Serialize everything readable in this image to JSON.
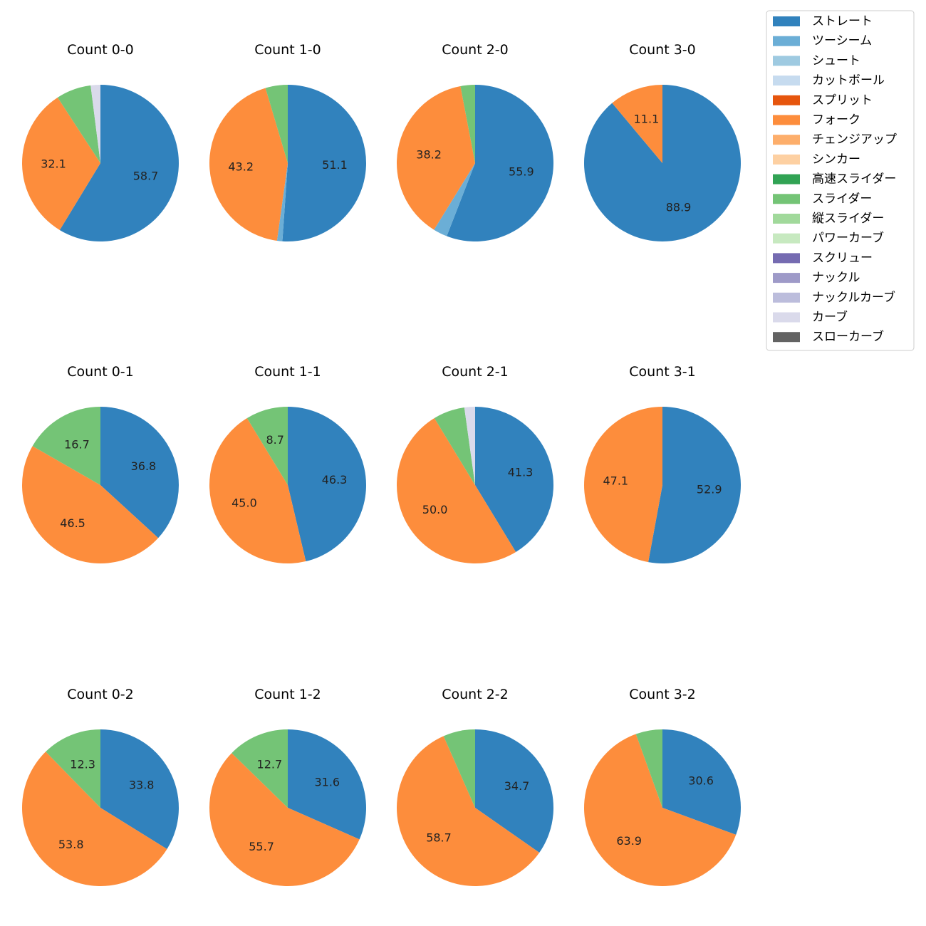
{
  "chart_data": {
    "type": "pie",
    "legend_position": "top-right",
    "categories": [
      "ストレート",
      "ツーシーム",
      "シュート",
      "カットボール",
      "スプリット",
      "フォーク",
      "チェンジアップ",
      "シンカー",
      "高速スライダー",
      "スライダー",
      "縦スライダー",
      "パワーカーブ",
      "スクリュー",
      "ナックル",
      "ナックルカーブ",
      "カーブ",
      "スローカーブ"
    ],
    "colors": [
      "#3182bd",
      "#6baed6",
      "#9ecae1",
      "#c6dbef",
      "#e6550d",
      "#fd8d3c",
      "#fdae6b",
      "#fdd0a2",
      "#31a354",
      "#74c476",
      "#a1d99b",
      "#c7e9c0",
      "#756bb1",
      "#9e9ac8",
      "#bcbddc",
      "#dadaeb",
      "#636363"
    ],
    "charts": [
      {
        "title": "Count 0-0",
        "slices": [
          {
            "category": "ストレート",
            "value": 58.7,
            "label": "58.7"
          },
          {
            "category": "フォーク",
            "value": 32.1,
            "label": "32.1"
          },
          {
            "category": "スライダー",
            "value": 7.2,
            "label": ""
          },
          {
            "category": "カーブ",
            "value": 2.0,
            "label": ""
          }
        ]
      },
      {
        "title": "Count 1-0",
        "slices": [
          {
            "category": "ストレート",
            "value": 51.1,
            "label": "51.1"
          },
          {
            "category": "ツーシーム",
            "value": 1.1,
            "label": ""
          },
          {
            "category": "フォーク",
            "value": 43.2,
            "label": "43.2"
          },
          {
            "category": "スライダー",
            "value": 4.6,
            "label": ""
          }
        ]
      },
      {
        "title": "Count 2-0",
        "slices": [
          {
            "category": "ストレート",
            "value": 55.9,
            "label": "55.9"
          },
          {
            "category": "ツーシーム",
            "value": 2.9,
            "label": ""
          },
          {
            "category": "フォーク",
            "value": 38.2,
            "label": "38.2"
          },
          {
            "category": "スライダー",
            "value": 3.0,
            "label": ""
          }
        ]
      },
      {
        "title": "Count 3-0",
        "slices": [
          {
            "category": "ストレート",
            "value": 88.9,
            "label": "88.9"
          },
          {
            "category": "フォーク",
            "value": 11.1,
            "label": "11.1"
          }
        ]
      },
      {
        "title": "Count 0-1",
        "slices": [
          {
            "category": "ストレート",
            "value": 36.8,
            "label": "36.8"
          },
          {
            "category": "フォーク",
            "value": 46.5,
            "label": "46.5"
          },
          {
            "category": "スライダー",
            "value": 16.7,
            "label": "16.7"
          }
        ]
      },
      {
        "title": "Count 1-1",
        "slices": [
          {
            "category": "ストレート",
            "value": 46.3,
            "label": "46.3"
          },
          {
            "category": "フォーク",
            "value": 45.0,
            "label": "45.0"
          },
          {
            "category": "スライダー",
            "value": 8.7,
            "label": "8.7"
          }
        ]
      },
      {
        "title": "Count 2-1",
        "slices": [
          {
            "category": "ストレート",
            "value": 41.3,
            "label": "41.3"
          },
          {
            "category": "フォーク",
            "value": 50.0,
            "label": "50.0"
          },
          {
            "category": "スライダー",
            "value": 6.5,
            "label": ""
          },
          {
            "category": "カーブ",
            "value": 2.2,
            "label": ""
          }
        ]
      },
      {
        "title": "Count 3-1",
        "slices": [
          {
            "category": "ストレート",
            "value": 52.9,
            "label": "52.9"
          },
          {
            "category": "フォーク",
            "value": 47.1,
            "label": "47.1"
          }
        ]
      },
      {
        "title": "Count 0-2",
        "slices": [
          {
            "category": "ストレート",
            "value": 33.8,
            "label": "33.8"
          },
          {
            "category": "フォーク",
            "value": 53.8,
            "label": "53.8"
          },
          {
            "category": "スライダー",
            "value": 12.3,
            "label": "12.3"
          }
        ]
      },
      {
        "title": "Count 1-2",
        "slices": [
          {
            "category": "ストレート",
            "value": 31.6,
            "label": "31.6"
          },
          {
            "category": "フォーク",
            "value": 55.7,
            "label": "55.7"
          },
          {
            "category": "スライダー",
            "value": 12.7,
            "label": "12.7"
          }
        ]
      },
      {
        "title": "Count 2-2",
        "slices": [
          {
            "category": "ストレート",
            "value": 34.7,
            "label": "34.7"
          },
          {
            "category": "フォーク",
            "value": 58.7,
            "label": "58.7"
          },
          {
            "category": "スライダー",
            "value": 6.6,
            "label": ""
          }
        ]
      },
      {
        "title": "Count 3-2",
        "slices": [
          {
            "category": "ストレート",
            "value": 30.6,
            "label": "30.6"
          },
          {
            "category": "フォーク",
            "value": 63.9,
            "label": "63.9"
          },
          {
            "category": "スライダー",
            "value": 5.5,
            "label": ""
          }
        ]
      }
    ]
  }
}
